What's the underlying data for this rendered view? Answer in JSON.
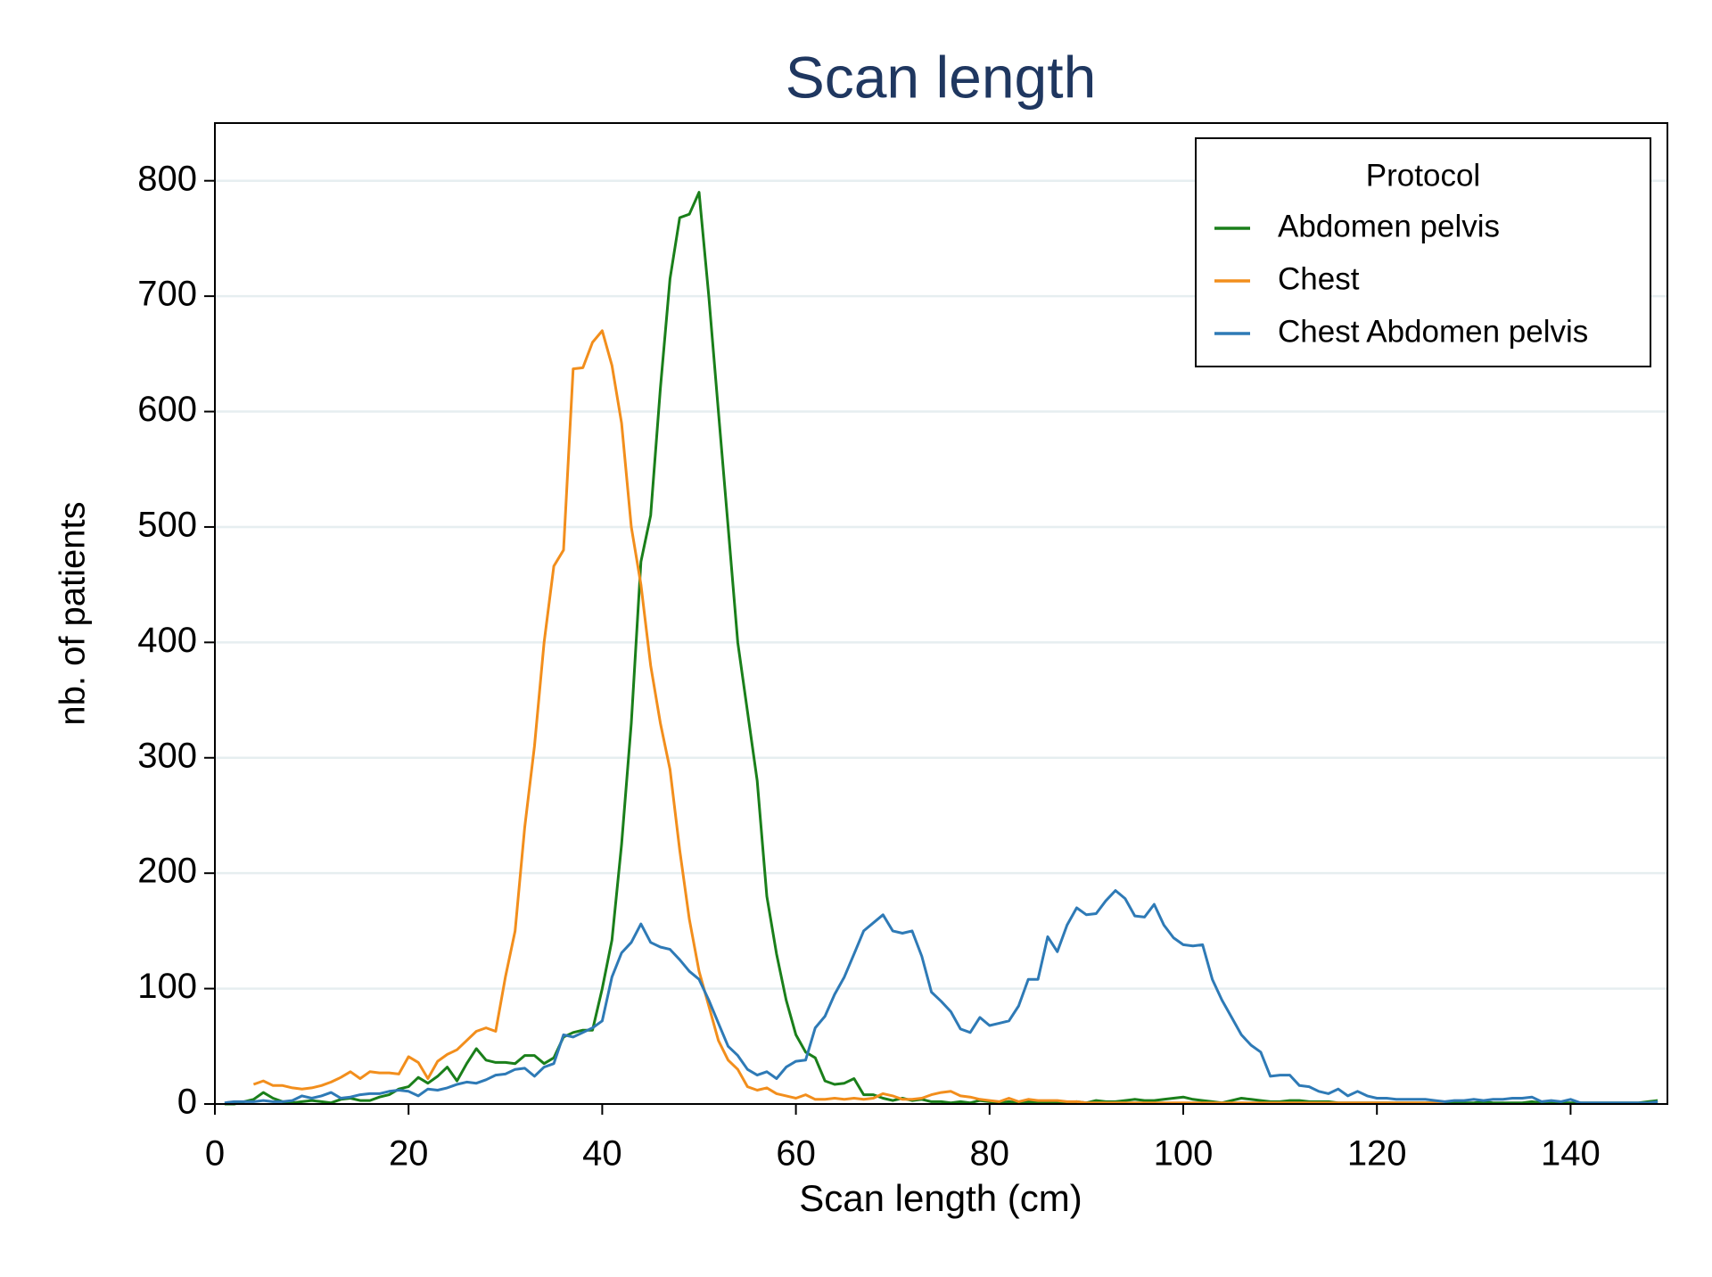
{
  "chart_data": {
    "type": "line",
    "title": "Scan length",
    "x_label": "Scan length (cm)",
    "y_label": "nb. of patients",
    "legend_title": "Protocol",
    "legend": "upper right",
    "grid": true,
    "xlim": [
      0,
      150
    ],
    "ylim": [
      0,
      850
    ],
    "xticks": [
      0,
      20,
      40,
      60,
      80,
      100,
      120,
      140
    ],
    "yticks": [
      0,
      100,
      200,
      300,
      400,
      500,
      600,
      700,
      800
    ],
    "x": [
      1,
      2,
      3,
      4,
      5,
      6,
      7,
      8,
      9,
      10,
      11,
      12,
      13,
      14,
      15,
      16,
      17,
      18,
      19,
      20,
      21,
      22,
      23,
      24,
      25,
      26,
      27,
      28,
      29,
      30,
      31,
      32,
      33,
      34,
      35,
      36,
      37,
      38,
      39,
      40,
      41,
      42,
      43,
      44,
      45,
      46,
      47,
      48,
      49,
      50,
      51,
      52,
      53,
      54,
      55,
      56,
      57,
      58,
      59,
      60,
      61,
      62,
      63,
      64,
      65,
      66,
      67,
      68,
      69,
      70,
      71,
      72,
      73,
      74,
      75,
      76,
      77,
      78,
      79,
      80,
      81,
      82,
      83,
      84,
      85,
      86,
      87,
      88,
      89,
      90,
      91,
      92,
      93,
      94,
      95,
      96,
      97,
      98,
      99,
      100,
      101,
      102,
      103,
      104,
      105,
      106,
      107,
      108,
      109,
      110,
      111,
      112,
      113,
      114,
      115,
      116,
      117,
      118,
      119,
      120,
      121,
      122,
      123,
      124,
      125,
      126,
      127,
      128,
      129,
      130,
      131,
      132,
      133,
      134,
      135,
      136,
      137,
      138,
      139,
      140,
      141,
      142,
      143,
      144,
      145,
      146,
      147,
      148,
      149
    ],
    "series": [
      {
        "name": "Abdomen pelvis",
        "color": "#1a7f1a",
        "values": [
          0,
          0,
          2,
          4,
          10,
          5,
          2,
          1,
          2,
          3,
          2,
          1,
          4,
          5,
          3,
          3,
          6,
          8,
          13,
          15,
          23,
          18,
          24,
          32,
          20,
          35,
          48,
          38,
          36,
          36,
          35,
          42,
          42,
          35,
          40,
          58,
          62,
          64,
          64,
          100,
          142,
          225,
          330,
          470,
          510,
          620,
          715,
          768,
          771,
          790,
          700,
          600,
          500,
          400,
          340,
          280,
          180,
          130,
          90,
          60,
          45,
          40,
          20,
          17,
          18,
          22,
          8,
          8,
          5,
          3,
          5,
          3,
          4,
          2,
          2,
          1,
          2,
          1,
          3,
          2,
          1,
          2,
          1,
          2,
          1,
          1,
          1,
          1,
          2,
          1,
          3,
          2,
          2,
          3,
          4,
          3,
          3,
          4,
          5,
          6,
          4,
          3,
          2,
          1,
          3,
          5,
          4,
          3,
          2,
          2,
          3,
          3,
          2,
          2,
          2,
          1,
          1,
          1,
          1,
          1,
          1,
          1,
          1,
          1,
          1,
          1,
          1,
          1,
          1,
          1,
          2,
          1,
          1,
          1,
          1,
          2,
          1,
          1,
          1,
          1,
          1,
          1,
          1,
          1,
          1,
          1,
          1,
          2,
          3
        ]
      },
      {
        "name": "Chest",
        "color": "#f28e1c",
        "values": [
          null,
          null,
          null,
          17,
          20,
          16,
          16,
          14,
          13,
          14,
          16,
          19,
          23,
          28,
          22,
          28,
          27,
          27,
          26,
          41,
          36,
          22,
          37,
          43,
          47,
          55,
          63,
          66,
          63,
          110,
          150,
          240,
          310,
          400,
          466,
          480,
          637,
          638,
          660,
          670,
          640,
          590,
          500,
          450,
          380,
          330,
          290,
          220,
          160,
          115,
          85,
          55,
          38,
          30,
          15,
          12,
          14,
          9,
          7,
          5,
          8,
          4,
          4,
          5,
          4,
          5,
          4,
          5,
          9,
          7,
          4,
          4,
          5,
          8,
          10,
          11,
          7,
          6,
          4,
          3,
          2,
          5,
          2,
          4,
          3,
          3,
          3,
          2,
          2,
          1,
          1,
          1,
          1,
          1,
          1,
          1,
          1,
          1,
          1,
          1,
          1,
          1,
          1,
          1,
          1,
          1,
          1,
          1,
          1,
          1,
          1,
          1,
          1,
          1,
          1,
          1,
          1,
          1,
          1,
          1,
          1,
          1,
          1,
          1,
          1,
          1,
          1,
          null,
          null,
          null,
          null,
          null,
          null,
          null,
          null,
          null,
          null,
          null,
          null,
          null,
          null,
          null,
          null,
          null,
          null,
          null,
          null,
          null,
          null
        ]
      },
      {
        "name": "Chest Abdomen pelvis",
        "color": "#2e7ab6",
        "values": [
          1,
          2,
          2,
          2,
          3,
          2,
          2,
          3,
          7,
          5,
          7,
          10,
          5,
          6,
          8,
          9,
          9,
          11,
          12,
          11,
          7,
          13,
          12,
          14,
          17,
          19,
          18,
          21,
          25,
          26,
          30,
          31,
          24,
          32,
          35,
          60,
          58,
          62,
          66,
          72,
          110,
          131,
          140,
          156,
          140,
          136,
          134,
          125,
          115,
          108,
          90,
          70,
          50,
          42,
          30,
          25,
          28,
          22,
          32,
          37,
          38,
          66,
          76,
          95,
          110,
          130,
          150,
          157,
          164,
          150,
          148,
          150,
          128,
          97,
          89,
          80,
          65,
          62,
          75,
          68,
          70,
          72,
          85,
          108,
          108,
          145,
          132,
          155,
          170,
          164,
          165,
          176,
          185,
          178,
          163,
          162,
          173,
          155,
          144,
          138,
          137,
          138,
          108,
          90,
          75,
          60,
          51,
          45,
          24,
          25,
          25,
          16,
          15,
          11,
          9,
          13,
          7,
          11,
          7,
          5,
          5,
          4,
          4,
          4,
          4,
          3,
          2,
          3,
          3,
          4,
          3,
          4,
          4,
          5,
          5,
          6,
          2,
          3,
          2,
          4,
          1,
          1,
          1,
          1,
          1,
          1,
          1,
          1,
          2
        ]
      }
    ]
  }
}
